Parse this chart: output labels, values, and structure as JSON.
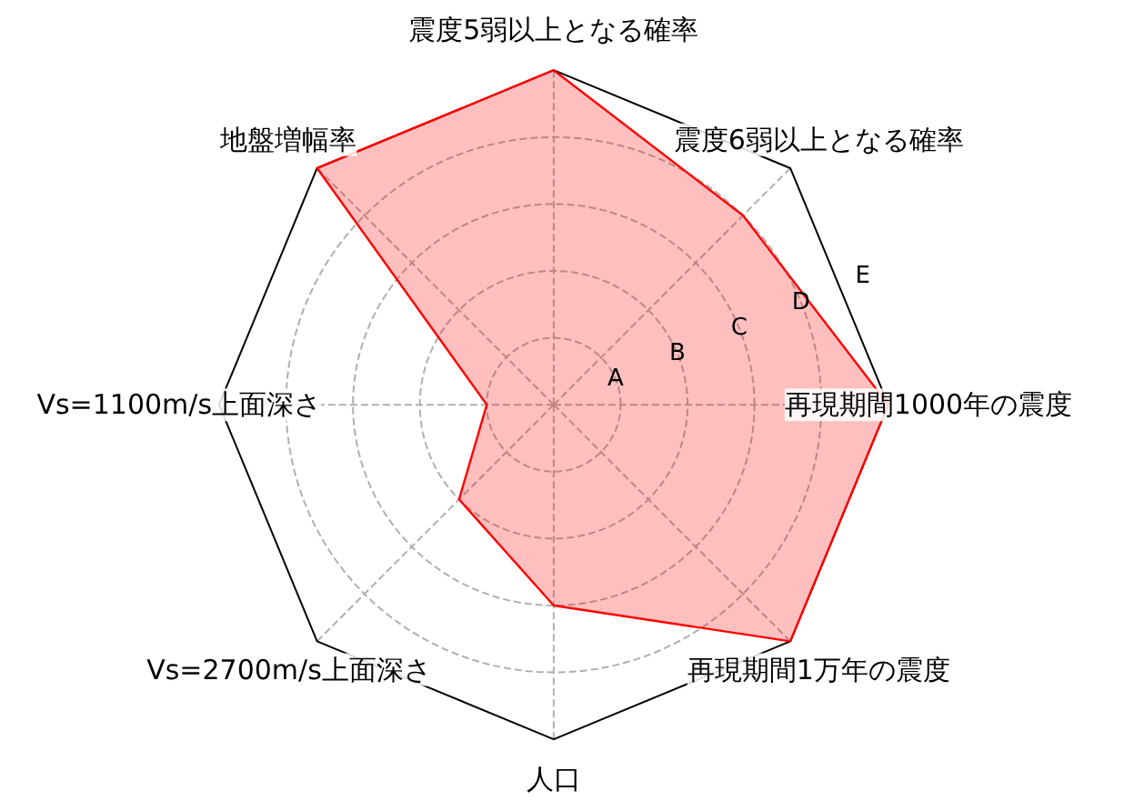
{
  "chart_data": {
    "type": "radar",
    "categories": [
      "震度5弱以上となる確率",
      "震度6弱以上となる確率",
      "再現期間1000年の震度",
      "再現期間1万年の震度",
      "人口",
      "Vs=2700m/s上面深さ",
      "Vs=1100m/s上面深さ",
      "地盤増幅率"
    ],
    "series": [
      {
        "color": "#ff0000",
        "values": [
          5,
          4,
          5,
          5,
          3,
          2,
          1,
          5
        ]
      }
    ],
    "ylim": [
      0,
      5
    ],
    "yticks": [
      {
        "value": 1,
        "label": "A"
      },
      {
        "value": 2,
        "label": "B"
      },
      {
        "value": 3,
        "label": "C"
      },
      {
        "value": 4,
        "label": "D"
      },
      {
        "value": 5,
        "label": "E"
      }
    ],
    "grid": true
  }
}
